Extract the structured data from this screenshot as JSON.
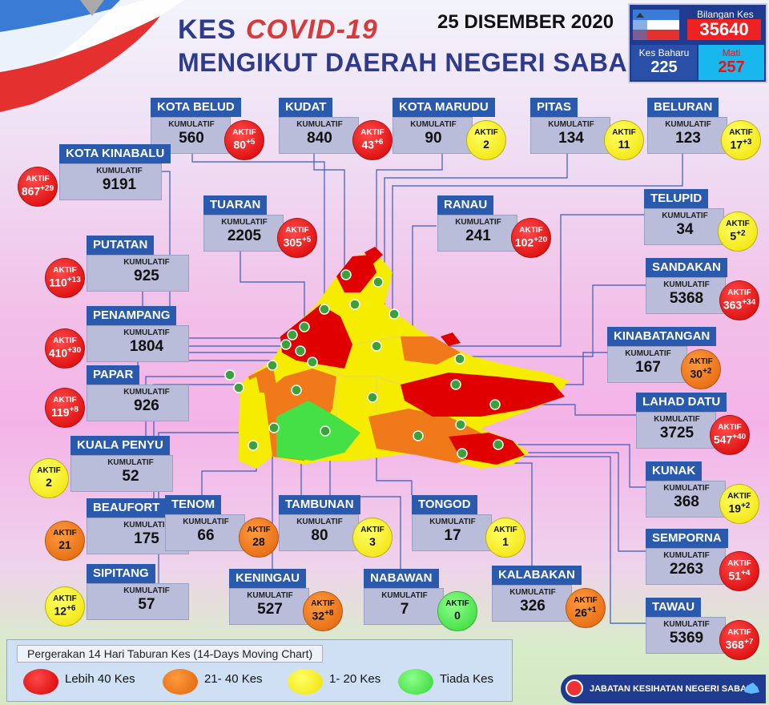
{
  "header": {
    "title_kes": "KES",
    "title_covid": "COVID-19",
    "title_line2": "MENGIKUT DAERAH NEGERI SABAH",
    "date": "25 DISEMBER 2020"
  },
  "stats": {
    "bilangan_label": "Bilangan Kes",
    "bilangan_value": "35640",
    "baharu_label": "Kes Baharu",
    "baharu_value": "225",
    "mati_label": "Mati",
    "mati_value": "257"
  },
  "labels": {
    "kumulatif": "KUMULATIF",
    "aktif": "AKTIF"
  },
  "colors": {
    "red": "#e00000",
    "orange": "#f07a1a",
    "yellow": "#f6ec00",
    "green": "#45e045",
    "header_blue": "#2a5aad"
  },
  "districts": [
    {
      "name": "KOTA BELUD",
      "kumulatif": "560",
      "aktif": "80",
      "new": "+5",
      "level": "red"
    },
    {
      "name": "KUDAT",
      "kumulatif": "840",
      "aktif": "43",
      "new": "+6",
      "level": "red"
    },
    {
      "name": "KOTA MARUDU",
      "kumulatif": "90",
      "aktif": "2",
      "new": "",
      "level": "yellow"
    },
    {
      "name": "PITAS",
      "kumulatif": "134",
      "aktif": "11",
      "new": "",
      "level": "yellow"
    },
    {
      "name": "BELURAN",
      "kumulatif": "123",
      "aktif": "17",
      "new": "+3",
      "level": "yellow"
    },
    {
      "name": "KOTA KINABALU",
      "kumulatif": "9191",
      "aktif": "867",
      "new": "+29",
      "level": "red"
    },
    {
      "name": "TUARAN",
      "kumulatif": "2205",
      "aktif": "305",
      "new": "+5",
      "level": "red"
    },
    {
      "name": "RANAU",
      "kumulatif": "241",
      "aktif": "102",
      "new": "+20",
      "level": "red"
    },
    {
      "name": "TELUPID",
      "kumulatif": "34",
      "aktif": "5",
      "new": "+2",
      "level": "yellow"
    },
    {
      "name": "PUTATAN",
      "kumulatif": "925",
      "aktif": "110",
      "new": "+13",
      "level": "red"
    },
    {
      "name": "SANDAKAN",
      "kumulatif": "5368",
      "aktif": "363",
      "new": "+34",
      "level": "red"
    },
    {
      "name": "PENAMPANG",
      "kumulatif": "1804",
      "aktif": "410",
      "new": "+30",
      "level": "red"
    },
    {
      "name": "KINABATANGAN",
      "kumulatif": "167",
      "aktif": "30",
      "new": "+2",
      "level": "orange"
    },
    {
      "name": "PAPAR",
      "kumulatif": "926",
      "aktif": "119",
      "new": "+8",
      "level": "red"
    },
    {
      "name": "LAHAD DATU",
      "kumulatif": "3725",
      "aktif": "547",
      "new": "+40",
      "level": "red"
    },
    {
      "name": "KUALA PENYU",
      "kumulatif": "52",
      "aktif": "2",
      "new": "",
      "level": "yellow"
    },
    {
      "name": "KUNAK",
      "kumulatif": "368",
      "aktif": "19",
      "new": "+2",
      "level": "yellow"
    },
    {
      "name": "BEAUFORT",
      "kumulatif": "175",
      "aktif": "21",
      "new": "",
      "level": "orange"
    },
    {
      "name": "TENOM",
      "kumulatif": "66",
      "aktif": "28",
      "new": "",
      "level": "orange"
    },
    {
      "name": "TAMBUNAN",
      "kumulatif": "80",
      "aktif": "3",
      "new": "",
      "level": "yellow"
    },
    {
      "name": "TONGOD",
      "kumulatif": "17",
      "aktif": "1",
      "new": "",
      "level": "yellow"
    },
    {
      "name": "SEMPORNA",
      "kumulatif": "2263",
      "aktif": "51",
      "new": "+4",
      "level": "red"
    },
    {
      "name": "SIPITANG",
      "kumulatif": "57",
      "aktif": "12",
      "new": "+6",
      "level": "yellow"
    },
    {
      "name": "KENINGAU",
      "kumulatif": "527",
      "aktif": "32",
      "new": "+8",
      "level": "orange"
    },
    {
      "name": "NABAWAN",
      "kumulatif": "7",
      "aktif": "0",
      "new": "",
      "level": "green"
    },
    {
      "name": "KALABAKAN",
      "kumulatif": "326",
      "aktif": "26",
      "new": "+1",
      "level": "orange"
    },
    {
      "name": "TAWAU",
      "kumulatif": "5369",
      "aktif": "368",
      "new": "+7",
      "level": "red"
    }
  ],
  "legend": {
    "title": "Pergerakan 14 Hari Taburan Kes (14-Days Moving Chart)",
    "items": [
      {
        "label": "Lebih 40 Kes",
        "level": "red"
      },
      {
        "label": "21- 40 Kes",
        "level": "orange"
      },
      {
        "label": "1- 20 Kes",
        "level": "yellow"
      },
      {
        "label": "Tiada Kes",
        "level": "green"
      }
    ]
  },
  "footer": {
    "agency": "JABATAN KESIHATAN NEGERI SABAH"
  }
}
